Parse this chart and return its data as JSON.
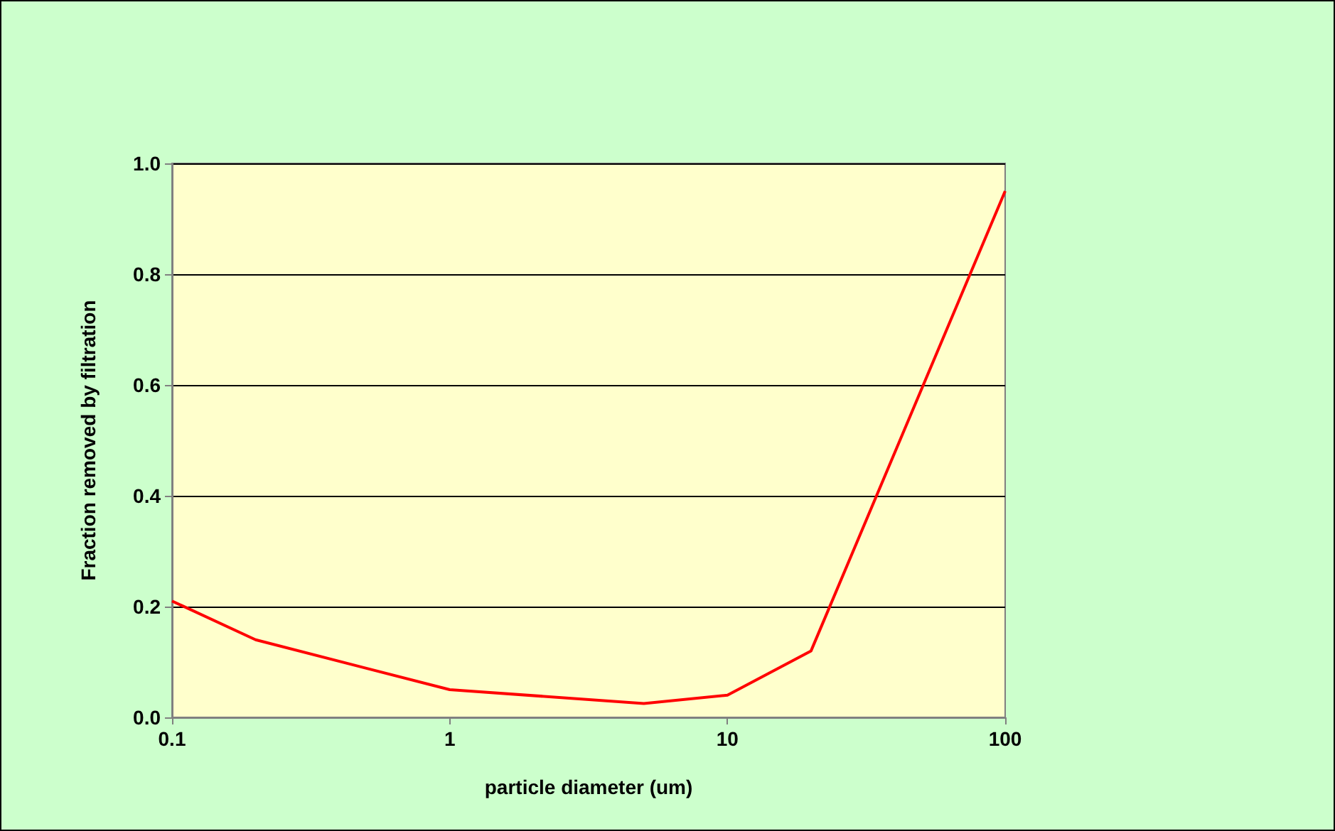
{
  "chart_data": {
    "type": "line",
    "xlabel": "particle diameter (um)",
    "ylabel": "Fraction removed by filtration",
    "log": "x",
    "x": [
      0.1,
      0.2,
      1,
      5,
      10,
      20,
      100
    ],
    "series": [
      {
        "color": "#ff0000",
        "values": [
          0.21,
          0.14,
          0.05,
          0.025,
          0.04,
          0.12,
          0.95
        ]
      }
    ],
    "xlim": [
      0.1,
      100
    ],
    "xticks": [
      0.1,
      1,
      10,
      100
    ],
    "ylim": [
      0,
      1
    ],
    "yticks": [
      {
        "value": 0,
        "label": "0.0"
      },
      {
        "value": 0.2,
        "label": "0.2"
      },
      {
        "value": 0.4,
        "label": "0.4"
      },
      {
        "value": 0.6,
        "label": "0.6"
      },
      {
        "value": 0.8,
        "label": "0.8"
      },
      {
        "value": 1,
        "label": "1.0"
      }
    ],
    "grid": "y",
    "marker": "none",
    "line_style": "solid"
  }
}
